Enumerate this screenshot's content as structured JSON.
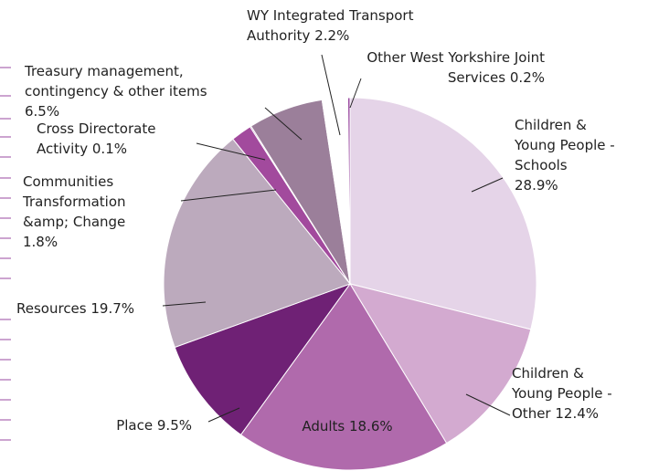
{
  "chart_data": {
    "type": "pie",
    "categories": [
      "Children & Young People - Schools",
      "Children & Young People - Other",
      "Adults",
      "Place",
      "Resources",
      "Communities Transformation &amp; Change",
      "Cross Directorate Activity",
      "Treasury management, contingency & other items",
      "WY Integrated Transport Authority",
      "Other West Yorkshire Joint Services"
    ],
    "values": [
      28.9,
      12.4,
      18.6,
      9.5,
      19.7,
      1.8,
      0.1,
      6.5,
      2.2,
      0.2
    ],
    "value_labels": [
      "28.9%",
      "12.4%",
      "18.6%",
      "9.5%",
      "19.7%",
      "1.8%",
      "0.1%",
      "6.5%",
      "2.2%",
      "0.2%"
    ],
    "colors": [
      "#e5d4e8",
      "#d3aad0",
      "#b06aac",
      "#6f2175",
      "#bcaabd",
      "#a24a9d",
      "#7b2c7d",
      "#9b7f9a",
      "#ffffff",
      "#9a4aa0"
    ]
  }
}
